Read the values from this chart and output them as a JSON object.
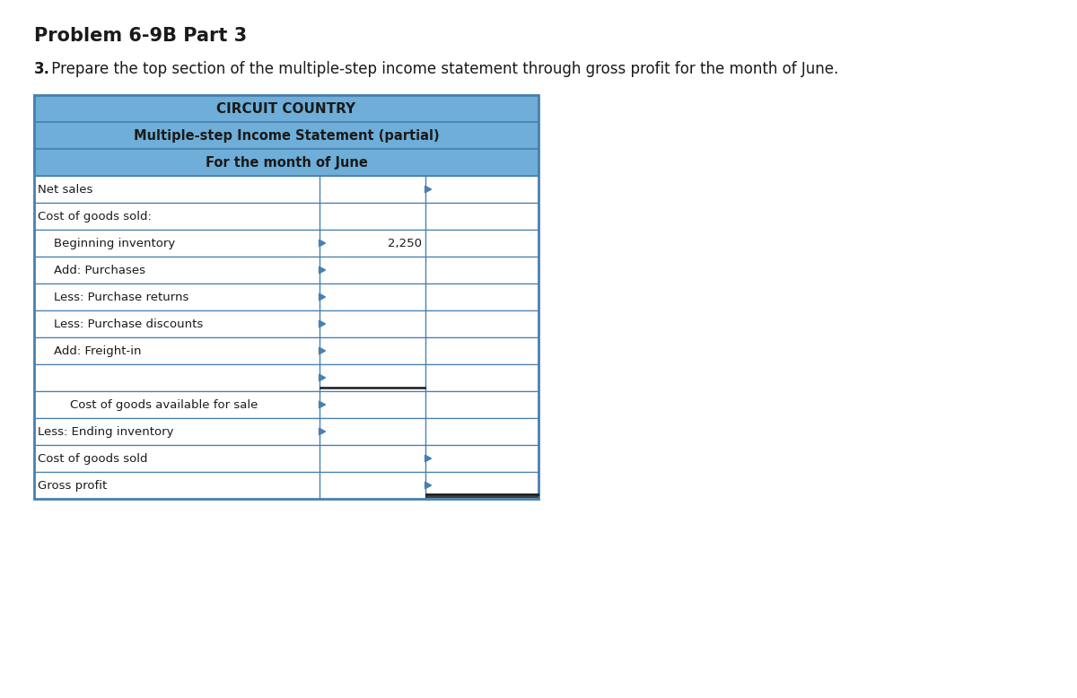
{
  "title": "Problem 6-9B Part 3",
  "subtitle_bold": "3.",
  "subtitle_rest": " Prepare the top section of the multiple-step income statement through gross profit for the month of June.",
  "company": "CIRCUIT COUNTRY",
  "statement_title": "Multiple-step Income Statement (partial)",
  "period": "For the month of June",
  "header_bg": "#6eaed8",
  "header_border": "#4a80b0",
  "table_border": "#4a80b0",
  "row_bg": "#ffffff",
  "text_color": "#1a1a1a",
  "rows": [
    {
      "label": "Net sales",
      "col1": "",
      "indent": 0,
      "arrow_col1": false,
      "arrow_col2": true,
      "underline_col1": false,
      "double_under_col2": false
    },
    {
      "label": "Cost of goods sold:",
      "col1": "",
      "indent": 0,
      "arrow_col1": false,
      "arrow_col2": false,
      "underline_col1": false,
      "double_under_col2": false
    },
    {
      "label": "Beginning inventory",
      "col1": "2,250",
      "indent": 1,
      "arrow_col1": true,
      "arrow_col2": false,
      "underline_col1": false,
      "double_under_col2": false
    },
    {
      "label": "Add: Purchases",
      "col1": "",
      "indent": 1,
      "arrow_col1": true,
      "arrow_col2": false,
      "underline_col1": false,
      "double_under_col2": false
    },
    {
      "label": "Less: Purchase returns",
      "col1": "",
      "indent": 1,
      "arrow_col1": true,
      "arrow_col2": false,
      "underline_col1": false,
      "double_under_col2": false
    },
    {
      "label": "Less: Purchase discounts",
      "col1": "",
      "indent": 1,
      "arrow_col1": true,
      "arrow_col2": false,
      "underline_col1": false,
      "double_under_col2": false
    },
    {
      "label": "Add: Freight-in",
      "col1": "",
      "indent": 1,
      "arrow_col1": true,
      "arrow_col2": false,
      "underline_col1": false,
      "double_under_col2": false
    },
    {
      "label": "",
      "col1": "",
      "indent": 1,
      "arrow_col1": true,
      "arrow_col2": false,
      "underline_col1": true,
      "double_under_col2": false
    },
    {
      "label": "Cost of goods available for sale",
      "col1": "",
      "indent": 2,
      "arrow_col1": true,
      "arrow_col2": false,
      "underline_col1": false,
      "double_under_col2": false
    },
    {
      "label": "Less: Ending inventory",
      "col1": "",
      "indent": 0,
      "arrow_col1": true,
      "arrow_col2": false,
      "underline_col1": false,
      "double_under_col2": false
    },
    {
      "label": "Cost of goods sold",
      "col1": "",
      "indent": 0,
      "arrow_col1": false,
      "arrow_col2": true,
      "underline_col1": false,
      "double_under_col2": false
    },
    {
      "label": "Gross profit",
      "col1": "",
      "indent": 0,
      "arrow_col1": false,
      "arrow_col2": true,
      "underline_col1": false,
      "double_under_col2": true
    }
  ],
  "fig_width": 12.0,
  "fig_height": 7.78,
  "bg_color": "#ffffff"
}
